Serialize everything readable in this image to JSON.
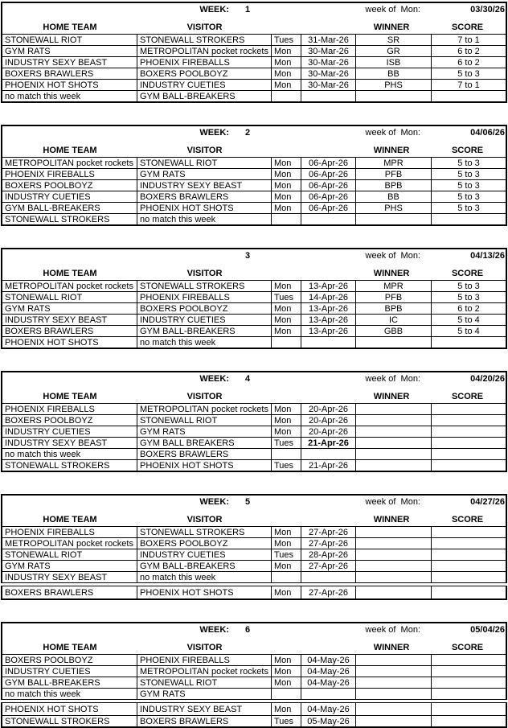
{
  "page": {
    "background": "#ffffff",
    "text_color": "#000000",
    "border_color": "#000000"
  },
  "column_headers": {
    "home": "HOME TEAM",
    "visitor": "VISITOR",
    "winner": "WINNER",
    "score": "SCORE"
  },
  "no_match_text": "no match this week",
  "weeks": [
    {
      "week_label": "WEEK:",
      "week_number": "1",
      "week_of_label": "week of  Mon:",
      "week_of_date": "03/30/26",
      "rows": [
        {
          "home": "STONEWALL RIOT",
          "visitor": "STONEWALL STROKERS",
          "day": "Tues",
          "date": "31-Mar-26",
          "winner": "SR",
          "score": "7 to 1",
          "date_bold": false,
          "gap_before": false
        },
        {
          "home": "GYM RATS",
          "visitor": "METROPOLITAN pocket rockets",
          "day": "Mon",
          "date": "30-Mar-26",
          "winner": "GR",
          "score": "6 to 2",
          "date_bold": false,
          "gap_before": false
        },
        {
          "home": "INDUSTRY SEXY BEAST",
          "visitor": "PHOENIX FIREBALLS",
          "day": "Mon",
          "date": "30-Mar-26",
          "winner": "ISB",
          "score": "6 to 2",
          "date_bold": false,
          "gap_before": false
        },
        {
          "home": "BOXERS BRAWLERS",
          "visitor": "BOXERS POOLBOYZ",
          "day": "Mon",
          "date": "30-Mar-26",
          "winner": "BB",
          "score": "5 to 3",
          "date_bold": false,
          "gap_before": false
        },
        {
          "home": "PHOENIX HOT SHOTS",
          "visitor": "INDUSTRY CUETIES",
          "day": "Mon",
          "date": "30-Mar-26",
          "winner": "PHS",
          "score": "7 to 1",
          "date_bold": false,
          "gap_before": false
        },
        {
          "home": "no match this week",
          "visitor": "GYM BALL-BREAKERS",
          "day": "",
          "date": "",
          "winner": "",
          "score": "",
          "date_bold": false,
          "gap_before": false
        }
      ]
    },
    {
      "week_label": "WEEK:",
      "week_number": "2",
      "week_of_label": "week of  Mon:",
      "week_of_date": "04/06/26",
      "rows": [
        {
          "home": "METROPOLITAN pocket rockets",
          "visitor": "STONEWALL RIOT",
          "day": "Mon",
          "date": "06-Apr-26",
          "winner": "MPR",
          "score": "5 to 3",
          "date_bold": false,
          "gap_before": false
        },
        {
          "home": "PHOENIX FIREBALLS",
          "visitor": "GYM RATS",
          "day": "Mon",
          "date": "06-Apr-26",
          "winner": "PFB",
          "score": "5 to 3",
          "date_bold": false,
          "gap_before": false
        },
        {
          "home": "BOXERS POOLBOYZ",
          "visitor": "INDUSTRY SEXY BEAST",
          "day": "Mon",
          "date": "06-Apr-26",
          "winner": "BPB",
          "score": "5 to 3",
          "date_bold": false,
          "gap_before": false
        },
        {
          "home": "INDUSTRY CUETIES",
          "visitor": "BOXERS BRAWLERS",
          "day": "Mon",
          "date": "06-Apr-26",
          "winner": "BB",
          "score": "5 to 3",
          "date_bold": false,
          "gap_before": false
        },
        {
          "home": "GYM BALL-BREAKERS",
          "visitor": "PHOENIX HOT SHOTS",
          "day": "Mon",
          "date": "06-Apr-26",
          "winner": "PHS",
          "score": "5 to 3",
          "date_bold": false,
          "gap_before": false
        },
        {
          "home": "STONEWALL STROKERS",
          "visitor": "no match this week",
          "day": "",
          "date": "",
          "winner": "",
          "score": "",
          "date_bold": false,
          "gap_before": false
        }
      ]
    },
    {
      "week_label": "",
      "week_number": "3",
      "week_of_label": "week of  Mon:",
      "week_of_date": "04/13/26",
      "rows": [
        {
          "home": "METROPOLITAN pocket rockets",
          "visitor": "STONEWALL STROKERS",
          "day": "Mon",
          "date": "13-Apr-26",
          "winner": "MPR",
          "score": "5 to 3",
          "date_bold": false,
          "gap_before": false
        },
        {
          "home": "STONEWALL RIOT",
          "visitor": "PHOENIX FIREBALLS",
          "day": "Tues",
          "date": "14-Apr-26",
          "winner": "PFB",
          "score": "5 to 3",
          "date_bold": false,
          "gap_before": false
        },
        {
          "home": "GYM RATS",
          "visitor": "BOXERS POOLBOYZ",
          "day": "Mon",
          "date": "13-Apr-26",
          "winner": "BPB",
          "score": "6 to 2",
          "date_bold": false,
          "gap_before": false
        },
        {
          "home": "INDUSTRY SEXY BEAST",
          "visitor": "INDUSTRY CUETIES",
          "day": "Mon",
          "date": "13-Apr-26",
          "winner": "IC",
          "score": "5 to 4",
          "date_bold": false,
          "gap_before": false
        },
        {
          "home": "BOXERS BRAWLERS",
          "visitor": "GYM BALL-BREAKERS",
          "day": "Mon",
          "date": "13-Apr-26",
          "winner": "GBB",
          "score": "5 to 4",
          "date_bold": false,
          "gap_before": false
        },
        {
          "home": "PHOENIX HOT SHOTS",
          "visitor": "no match this week",
          "day": "",
          "date": "",
          "winner": "",
          "score": "",
          "date_bold": false,
          "gap_before": false
        }
      ]
    },
    {
      "week_label": "WEEK:",
      "week_number": "4",
      "week_of_label": "week of  Mon:",
      "week_of_date": "04/20/26",
      "rows": [
        {
          "home": "PHOENIX FIREBALLS",
          "visitor": "METROPOLITAN pocket rockets",
          "day": "Mon",
          "date": "20-Apr-26",
          "winner": "",
          "score": "",
          "date_bold": false,
          "gap_before": false
        },
        {
          "home": "BOXERS POOLBOYZ",
          "visitor": "STONEWALL RIOT",
          "day": "Mon",
          "date": "20-Apr-26",
          "winner": "",
          "score": "",
          "date_bold": false,
          "gap_before": false
        },
        {
          "home": "INDUSTRY CUETIES",
          "visitor": "GYM RATS",
          "day": "Mon",
          "date": "20-Apr-26",
          "winner": "",
          "score": "",
          "date_bold": false,
          "gap_before": false
        },
        {
          "home": "INDUSTRY SEXY BEAST",
          "visitor": "GYM BALL BREAKERS",
          "day": "Tues",
          "date": "21-Apr-26",
          "winner": "",
          "score": "",
          "date_bold": true,
          "gap_before": false
        },
        {
          "home": "no match this week",
          "visitor": "BOXERS BRAWLERS",
          "day": "",
          "date": "",
          "winner": "",
          "score": "",
          "date_bold": false,
          "gap_before": false
        },
        {
          "home": "STONEWALL STROKERS",
          "visitor": "PHOENIX HOT SHOTS",
          "day": "Tues",
          "date": "21-Apr-26",
          "winner": "",
          "score": "",
          "date_bold": false,
          "gap_before": false
        }
      ]
    },
    {
      "week_label": "WEEK:",
      "week_number": "5",
      "week_of_label": "week of  Mon:",
      "week_of_date": "04/27/26",
      "rows": [
        {
          "home": "PHOENIX FIREBALLS",
          "visitor": "STONEWALL STROKERS",
          "day": "Mon",
          "date": "27-Apr-26",
          "winner": "",
          "score": "",
          "date_bold": false,
          "gap_before": false
        },
        {
          "home": "METROPOLITAN pocket rockets",
          "visitor": "BOXERS POOLBOYZ",
          "day": "Mon",
          "date": "27-Apr-26",
          "winner": "",
          "score": "",
          "date_bold": false,
          "gap_before": false
        },
        {
          "home": "STONEWALL RIOT",
          "visitor": "INDUSTRY CUETIES",
          "day": "Tues",
          "date": "28-Apr-26",
          "winner": "",
          "score": "",
          "date_bold": false,
          "gap_before": false
        },
        {
          "home": "GYM RATS",
          "visitor": "GYM BALL-BREAKERS",
          "day": "Mon",
          "date": "27-Apr-26",
          "winner": "",
          "score": "",
          "date_bold": false,
          "gap_before": false
        },
        {
          "home": "INDUSTRY SEXY BEAST",
          "visitor": "no match this week",
          "day": "",
          "date": "",
          "winner": "",
          "score": "",
          "date_bold": false,
          "gap_before": false
        },
        {
          "home": "BOXERS BRAWLERS",
          "visitor": "PHOENIX HOT SHOTS",
          "day": "Mon",
          "date": "27-Apr-26",
          "winner": "",
          "score": "",
          "date_bold": false,
          "gap_before": true
        }
      ]
    },
    {
      "week_label": "WEEK:",
      "week_number": "6",
      "week_of_label": "week of  Mon:",
      "week_of_date": "05/04/26",
      "rows": [
        {
          "home": "BOXERS POOLBOYZ",
          "visitor": "PHOENIX FIREBALLS",
          "day": "Mon",
          "date": "04-May-26",
          "winner": "",
          "score": "",
          "date_bold": false,
          "gap_before": false
        },
        {
          "home": "INDUSTRY CUETIES",
          "visitor": "METROPOLITAN pocket rockets",
          "day": "Mon",
          "date": "04-May-26",
          "winner": "",
          "score": "",
          "date_bold": false,
          "gap_before": false
        },
        {
          "home": "GYM BALL-BREAKERS",
          "visitor": "STONEWALL RIOT",
          "day": "Mon",
          "date": "04-May-26",
          "winner": "",
          "score": "",
          "date_bold": false,
          "gap_before": false
        },
        {
          "home": "no match this week",
          "visitor": "GYM RATS",
          "day": "",
          "date": "",
          "winner": "",
          "score": "",
          "date_bold": false,
          "gap_before": false
        },
        {
          "home": "PHOENIX HOT SHOTS",
          "visitor": "INDUSTRY SEXY BEAST",
          "day": "Mon",
          "date": "04-May-26",
          "winner": "",
          "score": "",
          "date_bold": false,
          "gap_before": true
        },
        {
          "home": "STONEWALL STROKERS",
          "visitor": "BOXERS BRAWLERS",
          "day": "Tues",
          "date": "05-May-26",
          "winner": "",
          "score": "",
          "date_bold": false,
          "gap_before": false
        }
      ]
    }
  ]
}
